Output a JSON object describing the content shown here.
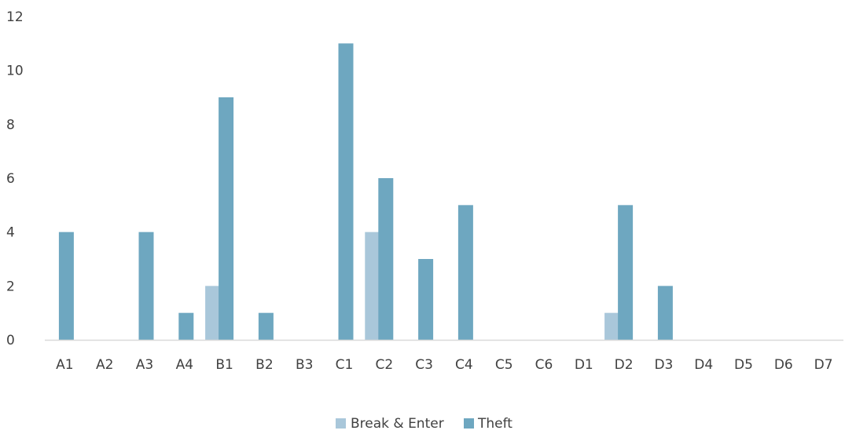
{
  "chart_data": {
    "type": "bar",
    "categories": [
      "A1",
      "A2",
      "A3",
      "A4",
      "B1",
      "B2",
      "B3",
      "C1",
      "C2",
      "C3",
      "C4",
      "C5",
      "C6",
      "D1",
      "D2",
      "D3",
      "D4",
      "D5",
      "D6",
      "D7"
    ],
    "series": [
      {
        "name": "Break & Enter",
        "color": "#a9c7da",
        "values": [
          0,
          0,
          0,
          0,
          2,
          0,
          0,
          0,
          4,
          0,
          0,
          0,
          0,
          0,
          1,
          0,
          0,
          0,
          0,
          0
        ]
      },
      {
        "name": "Theft",
        "color": "#6ea7c0",
        "values": [
          4,
          0,
          4,
          1,
          9,
          1,
          0,
          11,
          6,
          3,
          5,
          0,
          0,
          0,
          5,
          2,
          0,
          0,
          0,
          0
        ]
      }
    ],
    "ylim": [
      0,
      12
    ],
    "yticks": [
      0,
      2,
      4,
      6,
      8,
      10,
      12
    ],
    "title": "",
    "xlabel": "",
    "ylabel": "",
    "grid": false,
    "legend_position": "bottom"
  }
}
